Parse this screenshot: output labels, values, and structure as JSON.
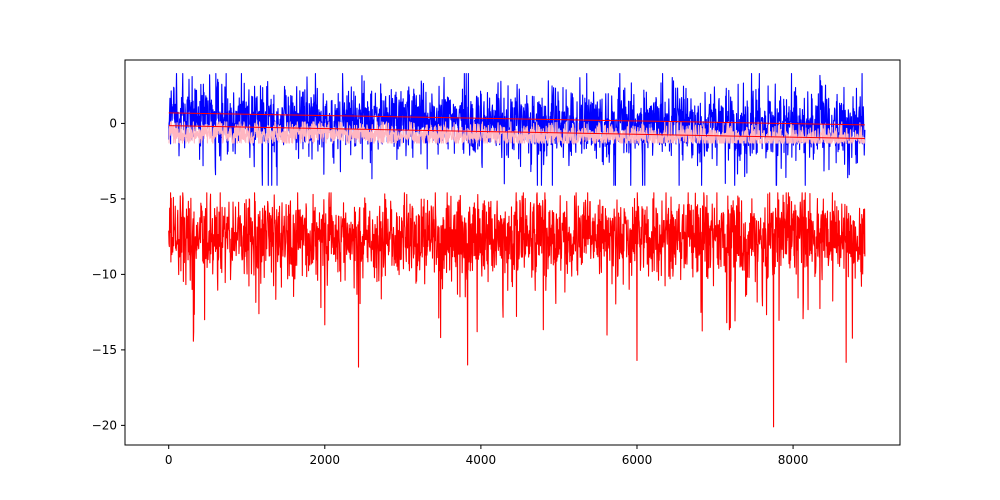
{
  "chart_data": {
    "type": "line",
    "title": "",
    "xlabel": "",
    "ylabel": "",
    "xlim": [
      -560,
      9370
    ],
    "ylim": [
      -21.3,
      4.2
    ],
    "x_ticks": [
      0,
      2000,
      4000,
      6000,
      8000
    ],
    "y_ticks": [
      0,
      -5,
      -10,
      -15,
      -20
    ],
    "x_tick_labels": [
      "0",
      "2000",
      "4000",
      "6000",
      "8000"
    ],
    "y_tick_labels": [
      "0",
      "−5",
      "−10",
      "−15",
      "−20"
    ],
    "grid": false,
    "legend": "none",
    "n_points": 8920,
    "series": [
      {
        "color": "#0000ff",
        "style": "noisy-line",
        "trend": {
          "x": [
            0,
            8920
          ],
          "y": [
            0.7,
            -0.1
          ]
        },
        "typical_band": [
          -1.6,
          2.6
        ],
        "anchors": [
          {
            "x": 100,
            "y": 3.3
          },
          {
            "x": 300,
            "y": 3.1
          },
          {
            "x": 600,
            "y": -3.4
          },
          {
            "x": 2200,
            "y": -3.2
          },
          {
            "x": 4300,
            "y": -4.0
          },
          {
            "x": 6100,
            "y": -4.1
          },
          {
            "x": 8700,
            "y": -3.6
          },
          {
            "x": 8900,
            "y": 1.1
          }
        ]
      },
      {
        "color": "#ffb6c1",
        "style": "noisy-line",
        "trend": {
          "x": [
            0,
            8920
          ],
          "y": [
            -0.6,
            -1.0
          ]
        },
        "typical_band": [
          -1.3,
          0.1
        ],
        "anchors": []
      },
      {
        "color": "#ff0000",
        "style": "smooth-line",
        "trend": {
          "x": [
            0,
            8920
          ],
          "y": [
            0.7,
            -0.1
          ]
        },
        "typical_band": [],
        "anchors": []
      },
      {
        "color": "#ff0000",
        "style": "smooth-line",
        "trend": {
          "x": [
            0,
            8920
          ],
          "y": [
            -0.15,
            -1.0
          ]
        },
        "typical_band": [],
        "anchors": []
      },
      {
        "color": "#ff0000",
        "style": "noisy-line",
        "trend": {
          "x": [
            0,
            8920
          ],
          "y": [
            -7.3,
            -7.3
          ]
        },
        "typical_band": [
          -10.0,
          -5.0
        ],
        "anchors": [
          {
            "x": 0,
            "y": -7.1
          },
          {
            "x": 60,
            "y": -4.9
          },
          {
            "x": 300,
            "y": -11.0
          },
          {
            "x": 320,
            "y": -13.8
          },
          {
            "x": 460,
            "y": -13.0
          },
          {
            "x": 1100,
            "y": -4.6
          },
          {
            "x": 1850,
            "y": -4.7
          },
          {
            "x": 1950,
            "y": -12.2
          },
          {
            "x": 3050,
            "y": -4.7
          },
          {
            "x": 3830,
            "y": -16.0
          },
          {
            "x": 5200,
            "y": -4.8
          },
          {
            "x": 6000,
            "y": -15.7
          },
          {
            "x": 7150,
            "y": -13.2
          },
          {
            "x": 7750,
            "y": -20.1
          },
          {
            "x": 8900,
            "y": -7.3
          }
        ]
      }
    ]
  }
}
